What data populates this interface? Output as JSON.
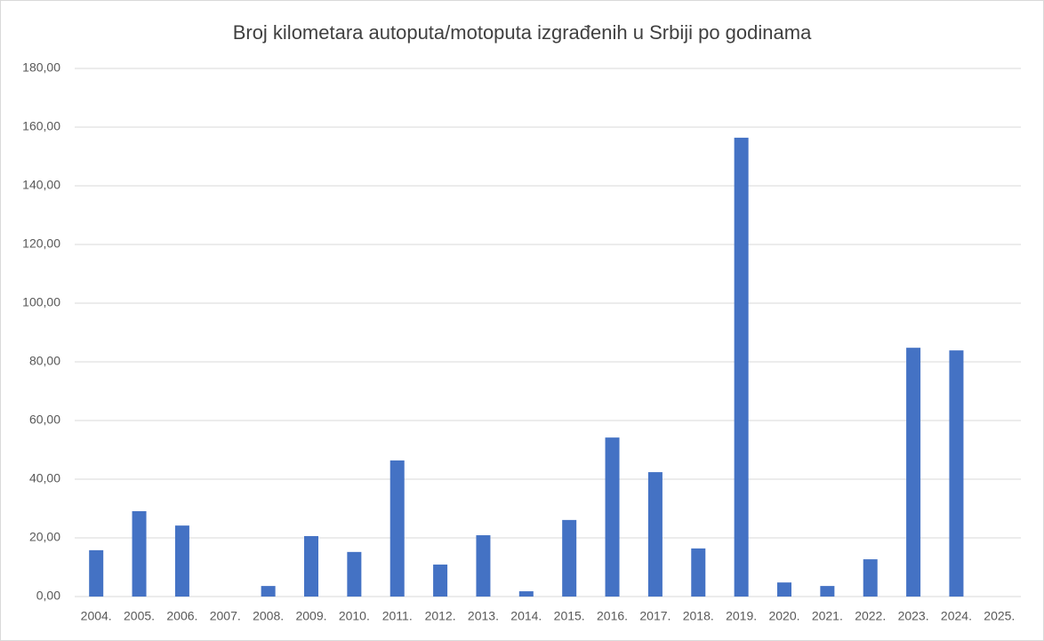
{
  "chart_data": {
    "type": "bar",
    "title": "Broj kilometara autoputa/motoputa izgrađenih u Srbiji po godinama",
    "categories": [
      "2004.",
      "2005.",
      "2006.",
      "2007.",
      "2008.",
      "2009.",
      "2010.",
      "2011.",
      "2012.",
      "2013.",
      "2014.",
      "2015.",
      "2016.",
      "2017.",
      "2018.",
      "2019.",
      "2020.",
      "2021.",
      "2022.",
      "2023.",
      "2024.",
      "2025."
    ],
    "values": [
      15.8,
      29.1,
      24.2,
      0,
      3.6,
      20.6,
      15.2,
      46.4,
      10.9,
      20.9,
      1.8,
      26.1,
      54.2,
      42.4,
      16.4,
      156.4,
      4.8,
      3.6,
      12.7,
      84.8,
      83.9,
      0
    ],
    "color": "#4472c4",
    "ylim": [
      0,
      180
    ],
    "yticks": [
      {
        "value": 0,
        "label": "0,00"
      },
      {
        "value": 20,
        "label": "20,00"
      },
      {
        "value": 40,
        "label": "40,00"
      },
      {
        "value": 60,
        "label": "60,00"
      },
      {
        "value": 80,
        "label": "80,00"
      },
      {
        "value": 100,
        "label": "100,00"
      },
      {
        "value": 120,
        "label": "120,00"
      },
      {
        "value": 140,
        "label": "140,00"
      },
      {
        "value": 160,
        "label": "160,00"
      },
      {
        "value": 180,
        "label": "180,00"
      }
    ],
    "grid": true
  }
}
